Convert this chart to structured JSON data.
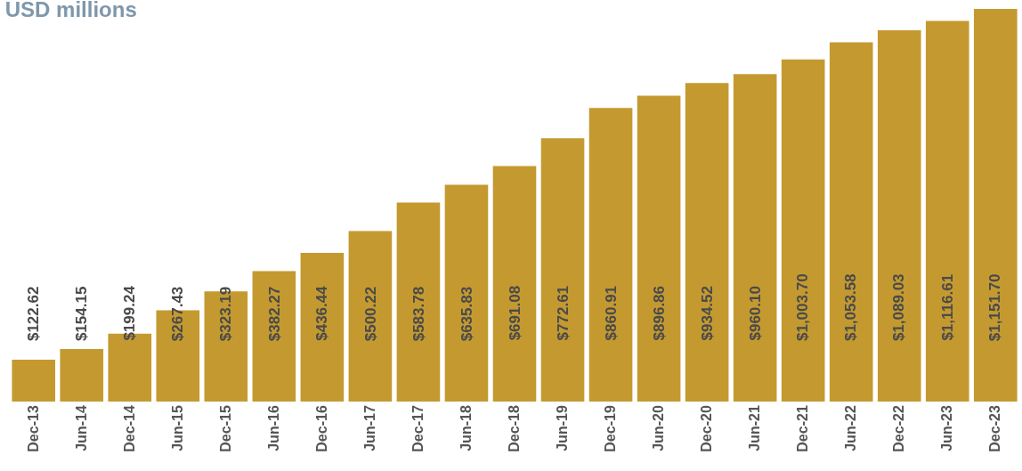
{
  "chart_data": {
    "type": "bar",
    "title": "USD millions",
    "categories": [
      "Dec-13",
      "Jun-14",
      "Dec-14",
      "Jun-15",
      "Dec-15",
      "Jun-16",
      "Dec-16",
      "Jun-17",
      "Dec-17",
      "Jun-18",
      "Dec-18",
      "Jun-19",
      "Dec-19",
      "Jun-20",
      "Dec-20",
      "Jun-21",
      "Dec-21",
      "Jun-22",
      "Dec-22",
      "Jun-23",
      "Dec-23"
    ],
    "values": [
      122.62,
      154.15,
      199.24,
      267.43,
      323.19,
      382.27,
      436.44,
      500.22,
      583.78,
      635.83,
      691.08,
      772.61,
      860.91,
      896.86,
      934.52,
      960.1,
      1003.7,
      1053.58,
      1089.03,
      1116.61,
      1151.7
    ],
    "value_labels": [
      "$122.62",
      "$154.15",
      "$199.24",
      "$267.43",
      "$323.19",
      "$382.27",
      "$436.44",
      "$500.22",
      "$583.78",
      "$635.83",
      "$691.08",
      "$772.61",
      "$860.91",
      "$896.86",
      "$934.52",
      "$960.10",
      "$1,003.70",
      "$1,053.58",
      "$1,089.03",
      "$1,116.61",
      "$1,151.70"
    ],
    "color": "#c49a30"
  }
}
